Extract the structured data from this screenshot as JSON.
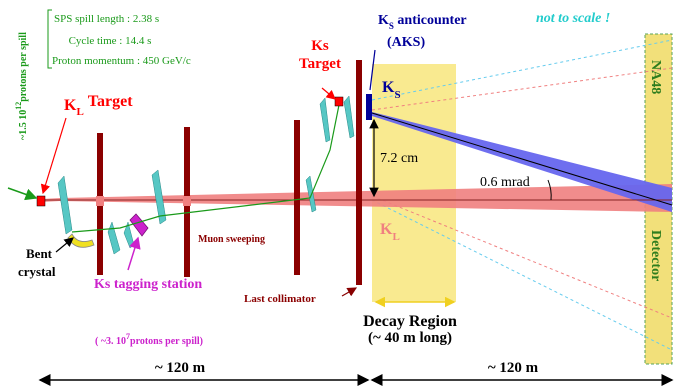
{
  "info_box": {
    "spill_length": "SPS spill length : 2.38 s",
    "cycle_time": "Cycle time : 14.4 s",
    "proton_momentum": "Proton momentum : 450 GeV/c"
  },
  "protons_per_spill": {
    "prefix": "~1.5 10",
    "exponent": "12",
    "suffix": "protons per spill"
  },
  "kl_target": {
    "main": "K",
    "sub": "L",
    "rest": "Target"
  },
  "ks_target": {
    "line1": "Ks",
    "line2": "Target"
  },
  "ks_anticounter": {
    "main": "K",
    "sub": "S",
    "rest": " anticounter",
    "line2": "(AKS)"
  },
  "not_to_scale": "not to scale !",
  "ks_beam_label": {
    "main": "K",
    "sub": "S"
  },
  "kl_beam_label": {
    "main": "K",
    "sub": "L"
  },
  "distance_label": "7.2 cm",
  "angle_label": "0.6 mrad",
  "detector_top": "NA48",
  "detector_bottom": "Detector",
  "bent_crystal": {
    "line1": "Bent",
    "line2": "crystal"
  },
  "muon_sweeping": "Muon sweeping",
  "last_collimator": "Last collimator",
  "ks_tagging": "Ks tagging station",
  "tagging_protons": {
    "prefix": "( ~3. 10",
    "exponent": "7",
    "suffix": "protons per spill)"
  },
  "decay_region": {
    "line1": "Decay Region",
    "line2": "(~ 40 m long)"
  },
  "dist_left": "~ 120 m",
  "dist_right": "~ 120 m",
  "colors": {
    "collimator": "#8b0000",
    "kl_beam": "#f08080",
    "ks_beam": "#6666ee",
    "decay_region": "#f7e36b",
    "detector": "#f2e07a",
    "detector_text": "#2e7d1e",
    "magnet": "#56c7c4",
    "red": "#ff0000",
    "green": "#1a9a1a",
    "magenta": "#cc22cc",
    "navy": "#000099",
    "not_to_scale": "#22cccc"
  }
}
